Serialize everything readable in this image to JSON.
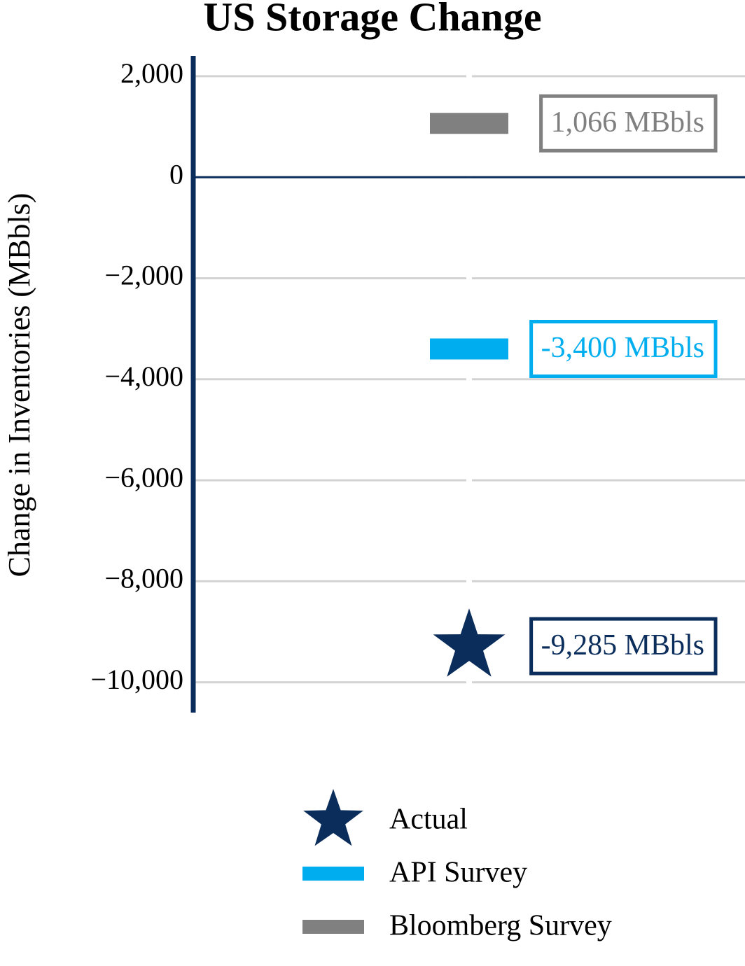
{
  "chart_data": {
    "type": "marker",
    "title": "US Storage Change",
    "y_label": "Change in Inventories (MBbls)",
    "categories": [
      null
    ],
    "series": [
      {
        "name": "Actual",
        "type": "star",
        "color": "#0b2d5b",
        "values": [
          -9285
        ],
        "value_labels": [
          "-9,285 MBbls"
        ]
      },
      {
        "name": "API Survey",
        "type": "hline",
        "color": "#00aeef",
        "values": [
          -3400
        ],
        "value_labels": [
          "-3,400 MBbls"
        ]
      },
      {
        "name": "Bloomberg Survey",
        "type": "hline",
        "color": "#808080",
        "values": [
          1066
        ],
        "value_labels": [
          "1,066 MBbls"
        ]
      }
    ],
    "ylim": [
      -10600,
      2400
    ],
    "yticks": [
      {
        "value": 2000,
        "label": "2,000"
      },
      0,
      {
        "value": -2000,
        "label": "−2,000"
      },
      {
        "value": -4000,
        "label": "−4,000"
      },
      {
        "value": -6000,
        "label": "−6,000"
      },
      {
        "value": -8000,
        "label": "−8,000"
      },
      {
        "value": -10000,
        "label": "−10,000"
      }
    ],
    "grid": true,
    "legend": "bottom"
  }
}
